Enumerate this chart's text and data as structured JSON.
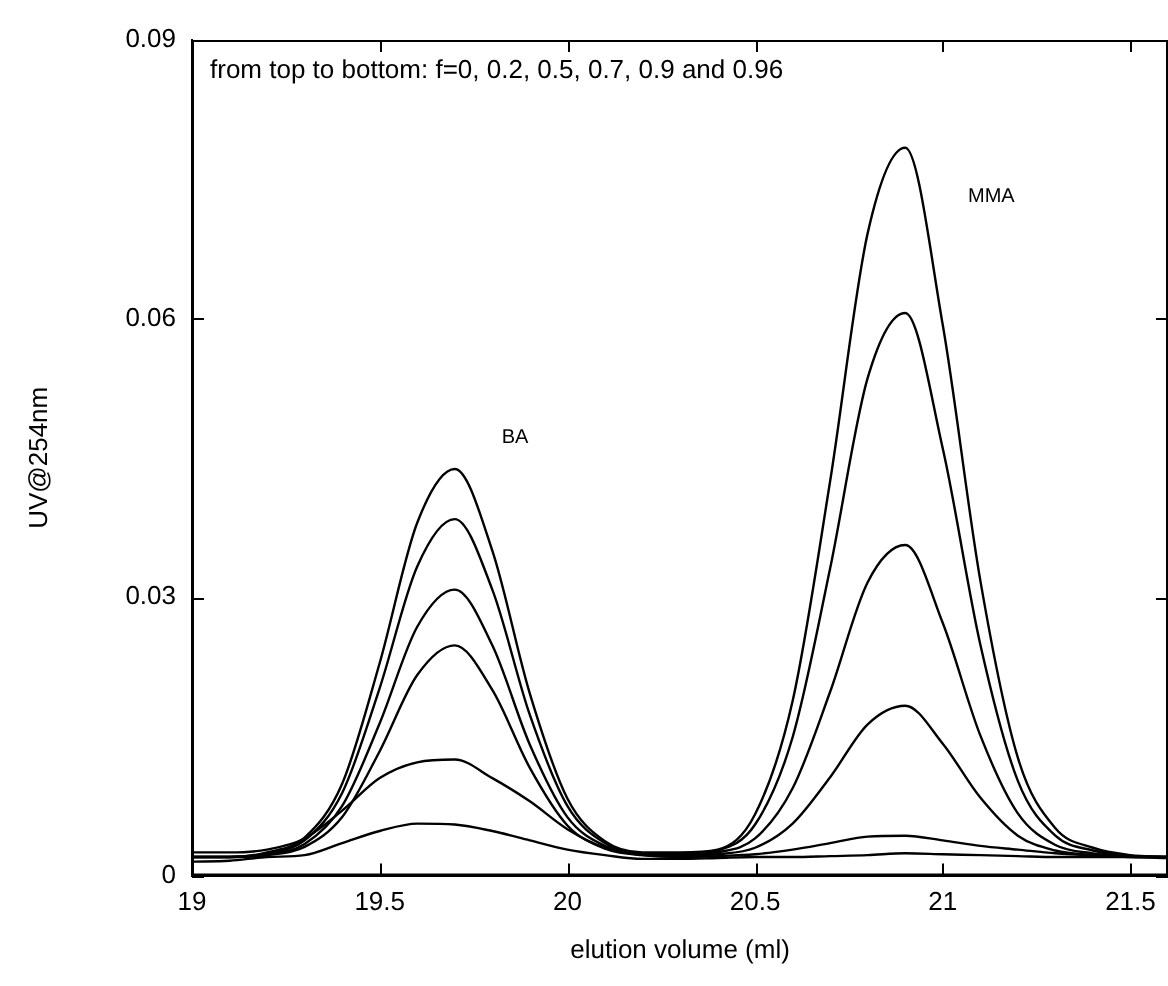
{
  "chart_data": {
    "type": "line",
    "xlabel": "elution volume (ml)",
    "ylabel": "UV@254nm",
    "x": [
      19,
      19.1,
      19.2,
      19.3,
      19.4,
      19.5,
      19.6,
      19.7,
      19.8,
      19.9,
      20,
      20.1,
      20.2,
      20.3,
      20.4,
      20.5,
      20.6,
      20.7,
      20.8,
      20.9,
      21,
      21.1,
      21.2,
      21.3,
      21.4,
      21.5,
      21.6
    ],
    "series": [
      {
        "color": "#000000",
        "values": [
          0.002,
          0.002,
          0.0025,
          0.0041,
          0.0099,
          0.0229,
          0.038,
          0.0438,
          0.035,
          0.0196,
          0.0083,
          0.0037,
          0.0025,
          0.0025,
          0.0028,
          0.0066,
          0.0188,
          0.0425,
          0.0692,
          0.0784,
          0.0593,
          0.0318,
          0.0127,
          0.0051,
          0.003,
          0.0022,
          0.002
        ]
      },
      {
        "color": "#000000",
        "values": [
          0.002,
          0.002,
          0.0024,
          0.0038,
          0.0089,
          0.0202,
          0.0333,
          0.0384,
          0.0308,
          0.0173,
          0.0075,
          0.0035,
          0.0024,
          0.0023,
          0.0027,
          0.0055,
          0.0149,
          0.0331,
          0.0536,
          0.0606,
          0.046,
          0.0249,
          0.0102,
          0.0043,
          0.0027,
          0.0021,
          0.002
        ]
      },
      {
        "color": "#000000",
        "values": [
          0.002,
          0.002,
          0.0023,
          0.0034,
          0.0075,
          0.0164,
          0.0268,
          0.0308,
          0.0248,
          0.0141,
          0.0063,
          0.0032,
          0.0023,
          0.0022,
          0.0025,
          0.004,
          0.0094,
          0.0198,
          0.0316,
          0.0356,
          0.0272,
          0.0151,
          0.0067,
          0.0033,
          0.0024,
          0.0021,
          0.002
        ]
      },
      {
        "color": "#000000",
        "values": [
          0.002,
          0.002,
          0.0022,
          0.0031,
          0.0063,
          0.0134,
          0.0216,
          0.0248,
          0.02,
          0.0116,
          0.0054,
          0.0029,
          0.0022,
          0.0021,
          0.0023,
          0.003,
          0.0056,
          0.0106,
          0.0163,
          0.0183,
          0.0142,
          0.0084,
          0.0043,
          0.0027,
          0.0022,
          0.002,
          0.0019
        ]
      },
      {
        "color": "#000000",
        "values": [
          0.0025,
          0.0025,
          0.0028,
          0.004,
          0.007,
          0.0105,
          0.0122,
          0.0125,
          0.0105,
          0.008,
          0.005,
          0.003,
          0.0022,
          0.002,
          0.0021,
          0.0023,
          0.0028,
          0.0035,
          0.0042,
          0.0043,
          0.0038,
          0.0032,
          0.0028,
          0.0024,
          0.0022,
          0.0021,
          0.002
        ]
      },
      {
        "color": "#000000",
        "values": [
          0.0015,
          0.0016,
          0.002,
          0.0022,
          0.0035,
          0.0048,
          0.0056,
          0.0055,
          0.0048,
          0.0038,
          0.0028,
          0.0022,
          0.0018,
          0.0018,
          0.0019,
          0.002,
          0.002,
          0.0021,
          0.0022,
          0.0024,
          0.0023,
          0.0022,
          0.0021,
          0.002,
          0.002,
          0.002,
          0.002
        ]
      }
    ],
    "xlim": [
      19,
      21.6
    ],
    "xticks": [
      19,
      19.5,
      20,
      20.5,
      21,
      21.5
    ],
    "ylim": [
      0,
      0.09
    ],
    "yticks": [
      0,
      0.03,
      0.06,
      0.09
    ],
    "annotations": [
      "from top to bottom: f=0, 0.2, 0.5, 0.7, 0.9 and 0.96",
      "BA",
      "MMA"
    ],
    "grid": false,
    "legend": false,
    "marker": "none",
    "line_style": "solid"
  }
}
